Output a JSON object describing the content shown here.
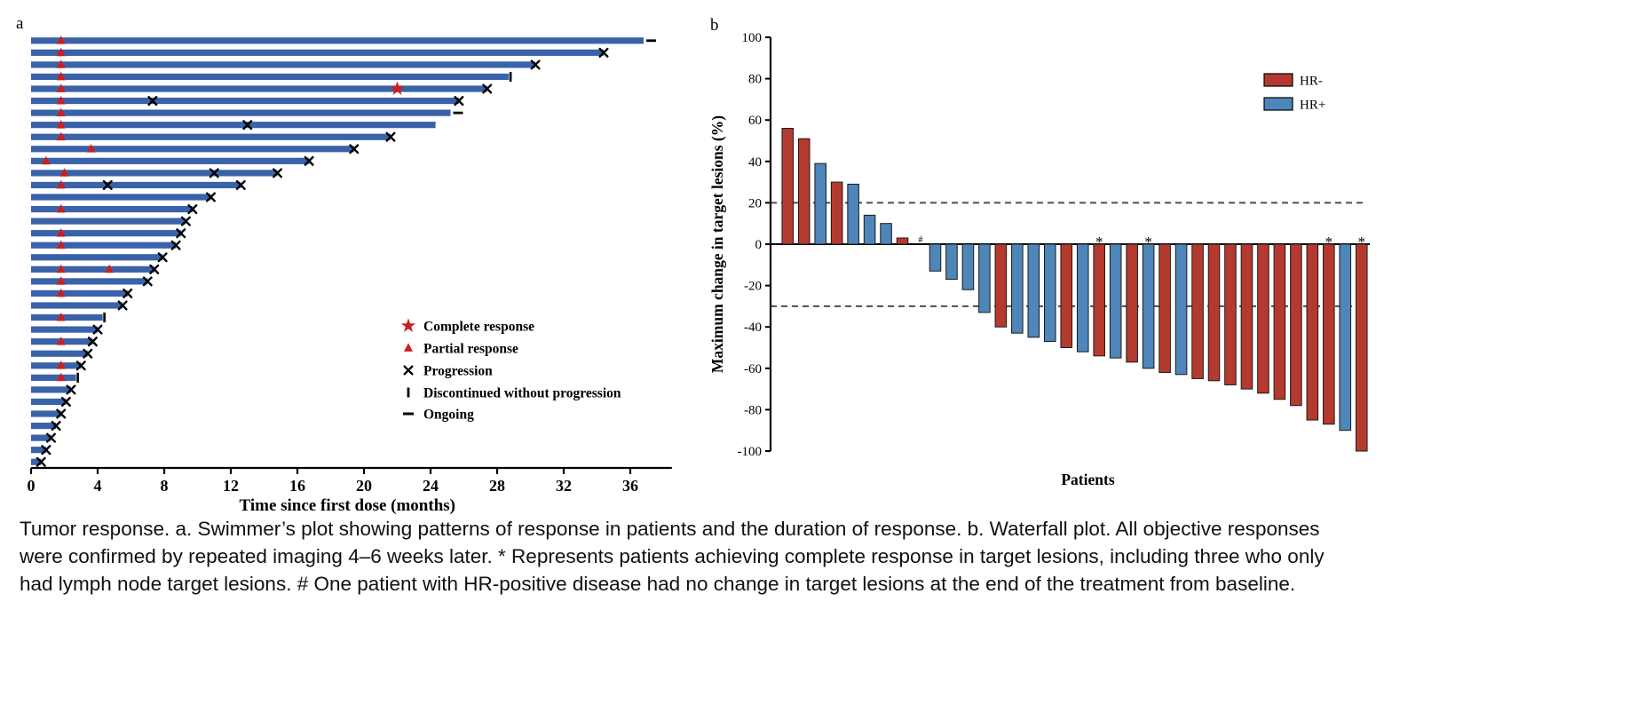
{
  "figure": {
    "panel_a_label": "a",
    "panel_b_label": "b",
    "caption": "Tumor response. a. Swimmer’s plot showing patterns of response in patients and the duration of response. b. Waterfall plot. All objective responses were confirmed by repeated imaging 4–6 weeks later. * Represents patients achieving complete response in target lesions, including three who only had lymph node target lesions. # One patient with HR-positive disease had no change in target lesions at the end of the treatment from baseline."
  },
  "colors": {
    "swimmer_bar": "#3a62a8",
    "hr_neg": "#b53a2e",
    "hr_pos": "#4e86ba",
    "marker_red": "#cc1f1f",
    "dashed_line": "#4d4d4d"
  },
  "chart_data": [
    {
      "type": "swimmer",
      "xlabel": "Time since first dose (months)",
      "xlim": [
        0,
        38.5
      ],
      "xticks": [
        0,
        4,
        8,
        12,
        16,
        20,
        24,
        28,
        32,
        36
      ],
      "legend": [
        {
          "marker": "star",
          "label": "Complete response"
        },
        {
          "marker": "triangle",
          "label": "Partial response"
        },
        {
          "marker": "x",
          "label": "Progression"
        },
        {
          "marker": "vbar",
          "label": "Discontinued without progression"
        },
        {
          "marker": "dash",
          "label": "Ongoing"
        }
      ],
      "patients": [
        {
          "duration": 36.8,
          "end": "ongoing",
          "events": [
            {
              "t": 1.8,
              "m": "pr"
            }
          ]
        },
        {
          "duration": 34.4,
          "end": "progression",
          "events": [
            {
              "t": 1.8,
              "m": "pr"
            }
          ]
        },
        {
          "duration": 30.3,
          "end": "progression",
          "events": [
            {
              "t": 1.8,
              "m": "pr"
            }
          ]
        },
        {
          "duration": 28.7,
          "end": "discontinued",
          "events": [
            {
              "t": 1.8,
              "m": "pr"
            }
          ]
        },
        {
          "duration": 27.4,
          "end": "progression",
          "events": [
            {
              "t": 1.8,
              "m": "pr"
            },
            {
              "t": 22.0,
              "m": "cr"
            }
          ]
        },
        {
          "duration": 25.7,
          "end": "progression",
          "events": [
            {
              "t": 1.8,
              "m": "pr"
            },
            {
              "t": 7.3,
              "m": "pd"
            }
          ]
        },
        {
          "duration": 25.2,
          "end": "ongoing",
          "events": [
            {
              "t": 1.8,
              "m": "pr"
            }
          ]
        },
        {
          "duration": 24.3,
          "end": "none",
          "events": [
            {
              "t": 1.8,
              "m": "pr"
            },
            {
              "t": 13.0,
              "m": "pd"
            }
          ]
        },
        {
          "duration": 21.6,
          "end": "progression",
          "events": [
            {
              "t": 1.8,
              "m": "pr"
            }
          ]
        },
        {
          "duration": 19.4,
          "end": "progression",
          "events": [
            {
              "t": 3.6,
              "m": "pr"
            }
          ]
        },
        {
          "duration": 16.7,
          "end": "progression",
          "events": [
            {
              "t": 0.9,
              "m": "pr"
            }
          ]
        },
        {
          "duration": 14.8,
          "end": "progression",
          "events": [
            {
              "t": 2.0,
              "m": "pr"
            },
            {
              "t": 11.0,
              "m": "pd"
            }
          ]
        },
        {
          "duration": 12.6,
          "end": "progression",
          "events": [
            {
              "t": 1.8,
              "m": "pr"
            },
            {
              "t": 4.6,
              "m": "pd"
            }
          ]
        },
        {
          "duration": 10.8,
          "end": "progression",
          "events": []
        },
        {
          "duration": 9.7,
          "end": "progression",
          "events": [
            {
              "t": 1.8,
              "m": "pr"
            }
          ]
        },
        {
          "duration": 9.3,
          "end": "progression",
          "events": []
        },
        {
          "duration": 9.0,
          "end": "progression",
          "events": [
            {
              "t": 1.8,
              "m": "pr"
            }
          ]
        },
        {
          "duration": 8.7,
          "end": "progression",
          "events": [
            {
              "t": 1.8,
              "m": "pr"
            }
          ]
        },
        {
          "duration": 7.9,
          "end": "progression",
          "events": []
        },
        {
          "duration": 7.4,
          "end": "progression",
          "events": [
            {
              "t": 1.8,
              "m": "pr"
            },
            {
              "t": 4.7,
              "m": "pr"
            }
          ]
        },
        {
          "duration": 7.0,
          "end": "progression",
          "events": [
            {
              "t": 1.8,
              "m": "pr"
            }
          ]
        },
        {
          "duration": 5.8,
          "end": "progression",
          "events": [
            {
              "t": 1.8,
              "m": "pr"
            }
          ]
        },
        {
          "duration": 5.5,
          "end": "progression",
          "events": []
        },
        {
          "duration": 4.3,
          "end": "discontinued",
          "events": [
            {
              "t": 1.8,
              "m": "pr"
            }
          ]
        },
        {
          "duration": 4.0,
          "end": "progression",
          "events": []
        },
        {
          "duration": 3.7,
          "end": "progression",
          "events": [
            {
              "t": 1.8,
              "m": "pr"
            }
          ]
        },
        {
          "duration": 3.4,
          "end": "progression",
          "events": []
        },
        {
          "duration": 3.0,
          "end": "progression",
          "events": [
            {
              "t": 1.8,
              "m": "pr"
            }
          ]
        },
        {
          "duration": 2.7,
          "end": "discontinued",
          "events": [
            {
              "t": 1.8,
              "m": "pr"
            }
          ]
        },
        {
          "duration": 2.4,
          "end": "progression",
          "events": []
        },
        {
          "duration": 2.1,
          "end": "progression",
          "events": []
        },
        {
          "duration": 1.8,
          "end": "progression",
          "events": []
        },
        {
          "duration": 1.5,
          "end": "progression",
          "events": []
        },
        {
          "duration": 1.2,
          "end": "progression",
          "events": []
        },
        {
          "duration": 0.9,
          "end": "progression",
          "events": []
        },
        {
          "duration": 0.6,
          "end": "progression",
          "events": []
        }
      ]
    },
    {
      "type": "waterfall",
      "ylabel": "Maximum change in target lesions (%)",
      "xlabel": "Patients",
      "ylim": [
        -100,
        100
      ],
      "yticks": [
        -100,
        -80,
        -60,
        -40,
        -20,
        0,
        20,
        40,
        60,
        80,
        100
      ],
      "reference_lines": [
        20,
        -30
      ],
      "legend": [
        {
          "label": "HR-",
          "color_key": "hr_neg"
        },
        {
          "label": "HR+",
          "color_key": "hr_pos"
        }
      ],
      "bars": [
        {
          "value": 56,
          "group": "HR-"
        },
        {
          "value": 51,
          "group": "HR-"
        },
        {
          "value": 39,
          "group": "HR+"
        },
        {
          "value": 30,
          "group": "HR-"
        },
        {
          "value": 29,
          "group": "HR+"
        },
        {
          "value": 14,
          "group": "HR+"
        },
        {
          "value": 10,
          "group": "HR+"
        },
        {
          "value": 3,
          "group": "HR-"
        },
        {
          "value": 0,
          "group": "HR+",
          "annotation": "#"
        },
        {
          "value": -13,
          "group": "HR+"
        },
        {
          "value": -17,
          "group": "HR+"
        },
        {
          "value": -22,
          "group": "HR+"
        },
        {
          "value": -33,
          "group": "HR+"
        },
        {
          "value": -40,
          "group": "HR-"
        },
        {
          "value": -43,
          "group": "HR+"
        },
        {
          "value": -45,
          "group": "HR+"
        },
        {
          "value": -47,
          "group": "HR+"
        },
        {
          "value": -50,
          "group": "HR-"
        },
        {
          "value": -52,
          "group": "HR+"
        },
        {
          "value": -54,
          "group": "HR-",
          "annotation": "*"
        },
        {
          "value": -55,
          "group": "HR+"
        },
        {
          "value": -57,
          "group": "HR-"
        },
        {
          "value": -60,
          "group": "HR+",
          "annotation": "*"
        },
        {
          "value": -62,
          "group": "HR-"
        },
        {
          "value": -63,
          "group": "HR+"
        },
        {
          "value": -65,
          "group": "HR-"
        },
        {
          "value": -66,
          "group": "HR-"
        },
        {
          "value": -68,
          "group": "HR-"
        },
        {
          "value": -70,
          "group": "HR-"
        },
        {
          "value": -72,
          "group": "HR-"
        },
        {
          "value": -75,
          "group": "HR-"
        },
        {
          "value": -78,
          "group": "HR-"
        },
        {
          "value": -85,
          "group": "HR-"
        },
        {
          "value": -87,
          "group": "HR-",
          "annotation": "*"
        },
        {
          "value": -90,
          "group": "HR+"
        },
        {
          "value": -100,
          "group": "HR-",
          "annotation": "*"
        }
      ]
    }
  ]
}
